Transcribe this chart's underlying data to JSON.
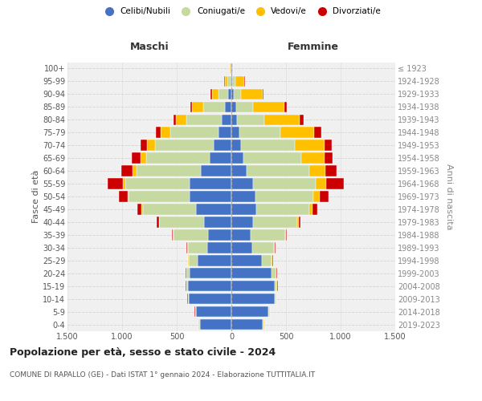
{
  "age_groups": [
    "0-4",
    "5-9",
    "10-14",
    "15-19",
    "20-24",
    "25-29",
    "30-34",
    "35-39",
    "40-44",
    "45-49",
    "50-54",
    "55-59",
    "60-64",
    "65-69",
    "70-74",
    "75-79",
    "80-84",
    "85-89",
    "90-94",
    "95-99",
    "100+"
  ],
  "birth_years": [
    "2019-2023",
    "2014-2018",
    "2009-2013",
    "2004-2008",
    "1999-2003",
    "1994-1998",
    "1989-1993",
    "1984-1988",
    "1979-1983",
    "1974-1978",
    "1969-1973",
    "1964-1968",
    "1959-1963",
    "1954-1958",
    "1949-1953",
    "1944-1948",
    "1939-1943",
    "1934-1938",
    "1929-1933",
    "1924-1928",
    "≤ 1923"
  ],
  "male": {
    "celibi": [
      290,
      320,
      390,
      400,
      380,
      310,
      220,
      210,
      250,
      320,
      380,
      380,
      280,
      200,
      160,
      120,
      90,
      60,
      30,
      10,
      5
    ],
    "coniugati": [
      5,
      5,
      5,
      10,
      30,
      80,
      180,
      320,
      410,
      490,
      560,
      590,
      590,
      580,
      540,
      440,
      320,
      200,
      90,
      30,
      5
    ],
    "vedovi": [
      5,
      5,
      5,
      5,
      5,
      5,
      5,
      5,
      5,
      10,
      10,
      25,
      35,
      50,
      70,
      90,
      100,
      100,
      60,
      20,
      2
    ],
    "divorziati": [
      5,
      5,
      5,
      5,
      5,
      5,
      10,
      10,
      20,
      40,
      80,
      140,
      100,
      80,
      60,
      40,
      20,
      15,
      10,
      5,
      1
    ]
  },
  "female": {
    "nubili": [
      290,
      340,
      400,
      400,
      370,
      280,
      190,
      180,
      200,
      230,
      220,
      200,
      140,
      110,
      90,
      70,
      55,
      45,
      25,
      10,
      5
    ],
    "coniugate": [
      5,
      5,
      5,
      15,
      40,
      90,
      200,
      310,
      400,
      480,
      530,
      570,
      570,
      530,
      490,
      380,
      250,
      150,
      60,
      30,
      5
    ],
    "vedove": [
      5,
      5,
      5,
      5,
      5,
      5,
      5,
      8,
      15,
      30,
      60,
      100,
      150,
      210,
      270,
      310,
      320,
      290,
      200,
      80,
      5
    ],
    "divorziate": [
      5,
      5,
      5,
      5,
      5,
      5,
      10,
      10,
      20,
      50,
      80,
      160,
      100,
      80,
      70,
      60,
      40,
      20,
      10,
      5,
      1
    ]
  },
  "colors": {
    "celibi": "#4472c4",
    "coniugati": "#c5d9a0",
    "vedovi": "#ffc000",
    "divorziati": "#cc0000"
  },
  "title": "Popolazione per età, sesso e stato civile - 2024",
  "subtitle": "COMUNE DI RAPALLO (GE) - Dati ISTAT 1° gennaio 2024 - Elaborazione TUTTITALIA.IT",
  "xlabel_left": "Maschi",
  "xlabel_right": "Femmine",
  "ylabel_left": "Fasce di età",
  "ylabel_right": "Anni di nascita",
  "xlim": 1500
}
